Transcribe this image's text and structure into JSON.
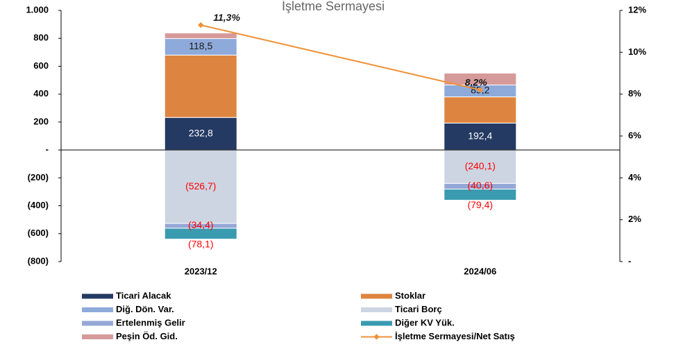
{
  "chart_data": {
    "type": "bar",
    "stacked": true,
    "title": "İşletme Sermayesi",
    "categories": [
      "2023/12",
      "2024/06"
    ],
    "series": [
      {
        "name": "Ticari Alacak",
        "color": "#243a63",
        "values": [
          232.8,
          192.4
        ],
        "value_labels": [
          "232,8",
          "192,4"
        ],
        "label_color": "#ffffff"
      },
      {
        "name": "Stoklar",
        "color": "#dd8540",
        "values": [
          447,
          188
        ]
      },
      {
        "name": "Diğ. Dön. Var.",
        "color": "#8eaadb",
        "values": [
          118.5,
          85.2
        ],
        "value_labels": [
          "118,5",
          "85,2"
        ],
        "label_color": "#1a1a1a"
      },
      {
        "name": "Ticari Borç",
        "color": "#cdd5e3",
        "values": [
          -526.7,
          -240.1
        ],
        "value_labels": [
          "(526,7)",
          "(240,1)"
        ],
        "label_color": "#ff0000"
      },
      {
        "name": "Ertelenmiş Gelir",
        "color": "#95a7d6",
        "values": [
          -34.4,
          -40.6
        ],
        "value_labels": [
          "(34,4)",
          "(40,6)"
        ],
        "label_color": "#ff0000"
      },
      {
        "name": "Diğer KV Yük.",
        "color": "#3a9bb0",
        "values": [
          -78.1,
          -79.4
        ],
        "value_labels": [
          "(78,1)",
          "(79,4)"
        ],
        "label_color": "#ff0000"
      },
      {
        "name": "Peşin Öd. Gid.",
        "color": "#d69a9a",
        "values": [
          40,
          85
        ]
      },
      {
        "name": "İşletme Sermayesi/Net Satış",
        "type": "line",
        "axis": "y2",
        "color": "#f0923a",
        "values": [
          11.3,
          8.2
        ],
        "value_labels": [
          "11,3%",
          "8,2%"
        ],
        "label_color": "#1a1a1a"
      }
    ],
    "ylim": [
      -800,
      1000
    ],
    "yticks": [
      {
        "value": 1000,
        "label": "1.000"
      },
      800,
      600,
      400,
      200,
      {
        "value": 0,
        "label": "-"
      },
      {
        "value": -200,
        "label": "(200)"
      },
      {
        "value": -400,
        "label": "(400)"
      },
      {
        "value": -600,
        "label": "(600)"
      },
      {
        "value": -800,
        "label": "(800)"
      }
    ],
    "y2lim": [
      0,
      12
    ],
    "y2ticks": [
      {
        "value": 12,
        "label": "12%"
      },
      {
        "value": 10,
        "label": "10%"
      },
      {
        "value": 8,
        "label": "8%"
      },
      {
        "value": 6,
        "label": "6%"
      },
      {
        "value": 4,
        "label": "4%"
      },
      {
        "value": 2,
        "label": "2%"
      },
      {
        "value": 0,
        "label": "-"
      }
    ]
  }
}
